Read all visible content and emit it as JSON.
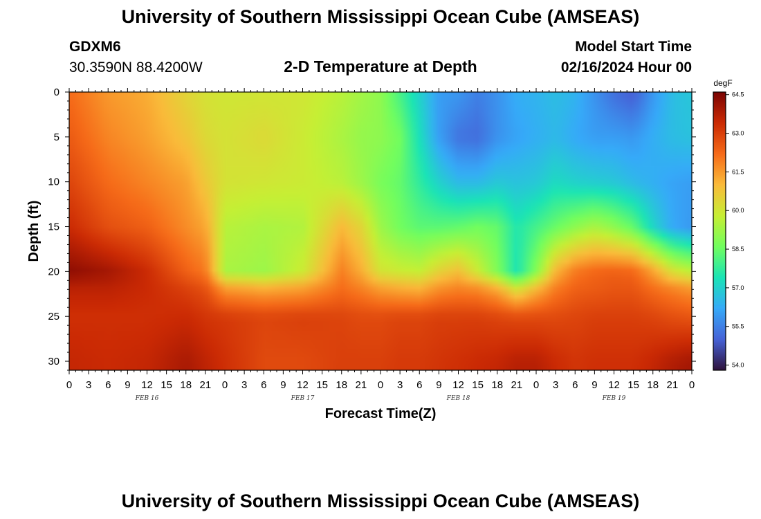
{
  "page_title_top": "University of Southern Mississippi Ocean Cube (AMSEAS)",
  "page_title_bottom": "University of Southern Mississippi Ocean Cube (AMSEAS)",
  "station": {
    "id": "GDXM6",
    "coords": "30.3590N  88.4200W"
  },
  "model_start": {
    "label": "Model Start Time",
    "value": "02/16/2024 Hour 00"
  },
  "chart_data": {
    "type": "heatmap",
    "title": "2-D Temperature at Depth",
    "xlabel": "Forecast Time(Z)",
    "ylabel": "Depth (ft)",
    "x_range_hours": [
      0,
      96
    ],
    "y_range_ft": [
      0,
      31
    ],
    "x_tick_labels": [
      "0",
      "3",
      "6",
      "9",
      "12",
      "15",
      "18",
      "21",
      "0",
      "3",
      "6",
      "9",
      "12",
      "15",
      "18",
      "21",
      "0",
      "3",
      "6",
      "9",
      "12",
      "15",
      "18",
      "21",
      "0",
      "3",
      "6",
      "9",
      "12",
      "15",
      "18",
      "21",
      "0"
    ],
    "y_ticks": [
      0,
      5,
      10,
      15,
      20,
      25,
      30
    ],
    "date_labels": [
      {
        "text": "FEB 16",
        "hour": 12
      },
      {
        "text": "FEB 17",
        "hour": 36
      },
      {
        "text": "FEB 18",
        "hour": 60
      },
      {
        "text": "FEB 19",
        "hour": 84
      }
    ],
    "colorbar": {
      "unit": "degF",
      "min": 53.8,
      "max": 64.6,
      "ticks": [
        "64.5",
        "63.0",
        "61.5",
        "60.0",
        "58.5",
        "57.0",
        "55.5",
        "54.0"
      ],
      "colors": [
        "#30123b",
        "#4662d7",
        "#36aaf9",
        "#1ae4b6",
        "#72fe5e",
        "#c7ef34",
        "#fabb3a",
        "#f66b19",
        "#cb2a04",
        "#7a0403"
      ]
    },
    "temperature_field": {
      "description": "Temperature (degF) sampled at forecast hours x depth levels, bilinearly interpolated",
      "hours": [
        0,
        6,
        12,
        18,
        21,
        24,
        30,
        36,
        42,
        45,
        48,
        51,
        54,
        57,
        60,
        63,
        66,
        69,
        72,
        75,
        78,
        81,
        84,
        87,
        90,
        93,
        96
      ],
      "depths_ft": [
        0,
        5,
        10,
        15,
        20,
        22,
        25,
        30
      ],
      "values": [
        [
          62.2,
          62.5,
          62.9,
          63.4,
          64.3,
          63.6,
          63.3,
          63.5
        ],
        [
          61.5,
          61.8,
          62.2,
          62.7,
          64.0,
          63.6,
          63.3,
          63.4
        ],
        [
          61.2,
          61.4,
          61.8,
          62.4,
          63.4,
          63.4,
          63.3,
          63.5
        ],
        [
          60.4,
          60.8,
          61.4,
          61.7,
          62.4,
          63.0,
          63.4,
          63.9
        ],
        [
          60.1,
          60.3,
          60.7,
          61.3,
          62.0,
          62.7,
          63.2,
          63.6
        ],
        [
          60.0,
          60.1,
          60.1,
          59.6,
          59.4,
          61.6,
          63.1,
          63.3
        ],
        [
          60.0,
          60.3,
          60.0,
          59.4,
          59.2,
          61.3,
          62.9,
          62.8
        ],
        [
          60.0,
          59.9,
          59.9,
          59.5,
          59.9,
          61.5,
          63.0,
          62.8
        ],
        [
          59.6,
          59.4,
          59.6,
          61.0,
          61.9,
          62.2,
          62.9,
          63.0
        ],
        [
          59.3,
          59.1,
          59.2,
          60.4,
          61.2,
          61.9,
          62.8,
          63.0
        ],
        [
          59.0,
          59.0,
          58.7,
          59.2,
          60.1,
          61.5,
          62.8,
          63.0
        ],
        [
          58.0,
          58.6,
          58.4,
          58.6,
          59.9,
          61.3,
          62.9,
          63.1
        ],
        [
          57.0,
          57.3,
          57.7,
          58.3,
          59.8,
          61.2,
          62.9,
          63.1
        ],
        [
          56.0,
          56.0,
          57.0,
          58.3,
          60.5,
          61.7,
          63.0,
          63.2
        ],
        [
          55.9,
          55.3,
          56.5,
          58.4,
          60.9,
          61.9,
          63.0,
          63.3
        ],
        [
          55.5,
          55.2,
          56.5,
          58.6,
          59.9,
          61.8,
          63.0,
          63.4
        ],
        [
          55.8,
          55.8,
          56.8,
          58.4,
          58.8,
          61.3,
          62.9,
          63.5
        ],
        [
          56.3,
          56.1,
          56.7,
          57.5,
          57.4,
          60.2,
          62.8,
          63.7
        ],
        [
          56.4,
          56.3,
          56.8,
          58.0,
          58.9,
          61.1,
          62.8,
          63.7
        ],
        [
          56.6,
          56.5,
          57.2,
          58.5,
          61.1,
          62.0,
          62.8,
          63.4
        ],
        [
          56.4,
          56.2,
          57.0,
          59.0,
          62.0,
          62.4,
          62.9,
          63.2
        ],
        [
          55.8,
          56.0,
          56.9,
          59.4,
          62.3,
          62.5,
          63.0,
          63.3
        ],
        [
          55.2,
          56.0,
          56.8,
          59.0,
          62.4,
          62.6,
          63.0,
          63.3
        ],
        [
          54.9,
          55.9,
          56.5,
          58.4,
          62.3,
          62.6,
          63.0,
          63.3
        ],
        [
          55.9,
          56.3,
          56.3,
          57.1,
          61.4,
          62.2,
          62.9,
          63.5
        ],
        [
          56.6,
          56.6,
          56.1,
          56.2,
          60.2,
          61.9,
          62.7,
          63.8
        ],
        [
          56.8,
          56.7,
          56.0,
          55.9,
          59.7,
          61.6,
          62.6,
          64.0
        ]
      ]
    }
  }
}
